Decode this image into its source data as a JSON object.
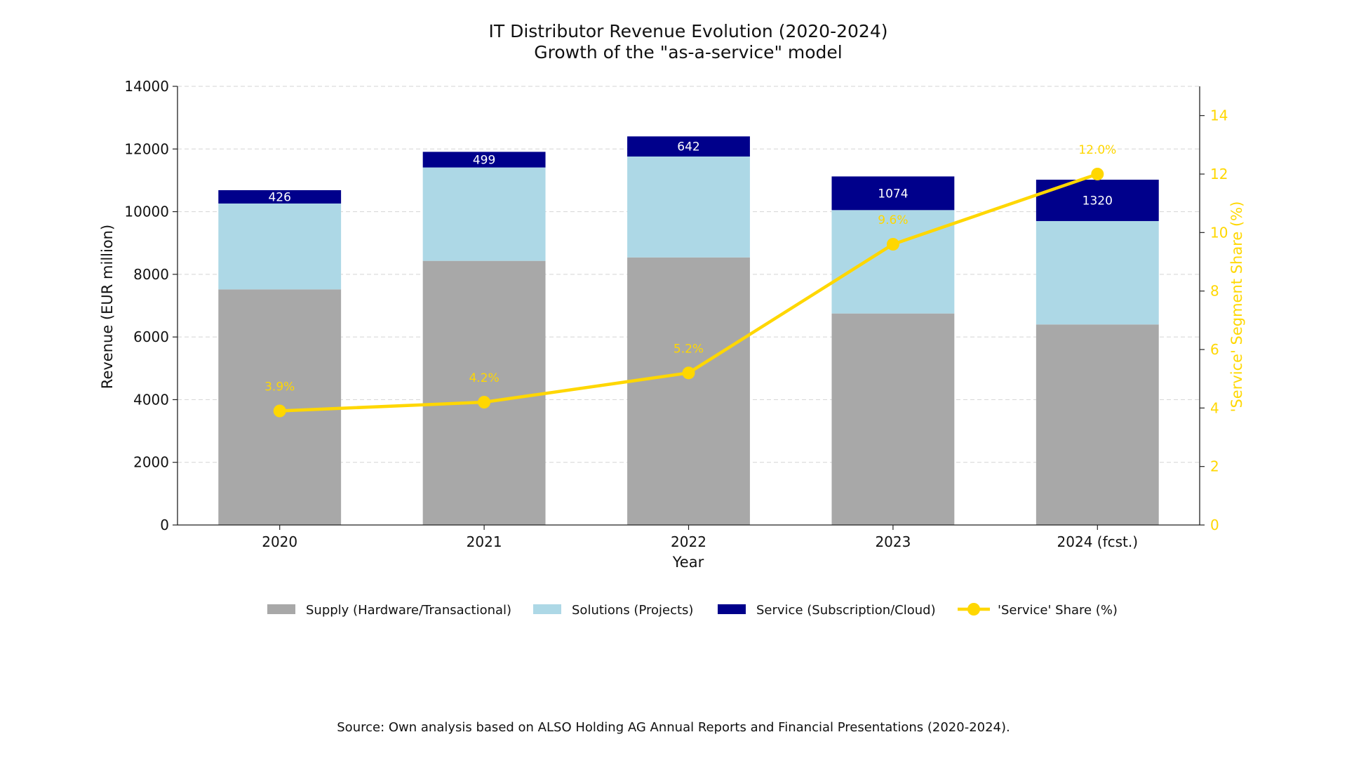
{
  "chart_data": {
    "type": "bar",
    "stacked": true,
    "title": "IT Distributor Revenue Evolution (2020-2024)",
    "subtitle": "Growth of the \"as-a-service\" model",
    "xlabel": "Year",
    "ylabel": "Revenue (EUR million)",
    "y2label": "'Service' Segment Share (%)",
    "categories": [
      "2020",
      "2021",
      "2022",
      "2023",
      "2024 (fcst.)"
    ],
    "ylim": [
      0,
      14000
    ],
    "yticks": [
      "0",
      "2000",
      "4000",
      "6000",
      "8000",
      "10000",
      "12000",
      "14000"
    ],
    "y2lim": [
      0,
      15
    ],
    "y2ticks": [
      "0",
      "2",
      "4",
      "6",
      "8",
      "10",
      "12",
      "14"
    ],
    "grid": "horizontal dashed",
    "legend_position": "bottom",
    "series": [
      {
        "name": "Supply (Hardware/Transactional)",
        "color": "#a8a8a8",
        "values": [
          7520,
          8430,
          8540,
          6750,
          6400
        ]
      },
      {
        "name": "Solutions (Projects)",
        "color": "#add8e6",
        "values": [
          2740,
          2980,
          3220,
          3300,
          3300
        ]
      },
      {
        "name": "Service (Subscription/Cloud)",
        "color": "#00008b",
        "values": [
          426,
          499,
          642,
          1074,
          1320
        ],
        "labels": [
          "426",
          "499",
          "642",
          "1074",
          "1320"
        ]
      }
    ],
    "line_series": {
      "name": "'Service' Share (%)",
      "color": "#ffd700",
      "axis": "right",
      "values": [
        3.9,
        4.2,
        5.2,
        9.6,
        12.0
      ],
      "labels": [
        "3.9%",
        "4.2%",
        "5.2%",
        "9.6%",
        "12.0%"
      ]
    },
    "source": "Source: Own analysis based on ALSO Holding AG Annual Reports and Financial Presentations (2020-2024)."
  }
}
